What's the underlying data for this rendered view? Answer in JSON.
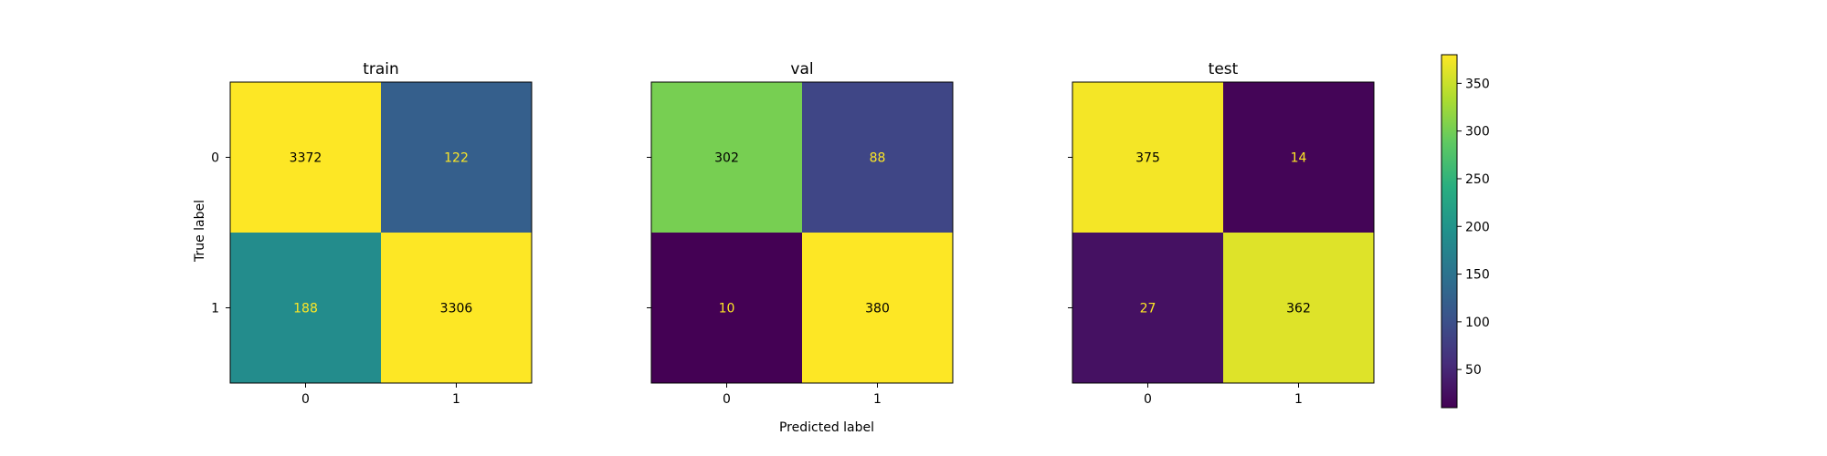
{
  "chart_data": {
    "type": "heatmap",
    "panels": [
      {
        "title": "train",
        "x": [
          "0",
          "1"
        ],
        "y": [
          "0",
          "1"
        ],
        "matrix": [
          [
            3372,
            122
          ],
          [
            188,
            3306
          ]
        ]
      },
      {
        "title": "val",
        "x": [
          "0",
          "1"
        ],
        "y": [
          "0",
          "1"
        ],
        "matrix": [
          [
            302,
            88
          ],
          [
            10,
            380
          ]
        ]
      },
      {
        "title": "test",
        "x": [
          "0",
          "1"
        ],
        "y": [
          "0",
          "1"
        ],
        "matrix": [
          [
            375,
            14
          ],
          [
            27,
            362
          ]
        ]
      }
    ],
    "xlabel": "Predicted label",
    "ylabel": "True label",
    "colormap": "viridis",
    "colorbar": {
      "min": 10,
      "max": 380,
      "ticks": [
        50,
        100,
        150,
        200,
        250,
        300,
        350
      ]
    },
    "grid": false,
    "text_colors": {
      "on_dark": "#fde725",
      "on_light": "#000000"
    }
  }
}
